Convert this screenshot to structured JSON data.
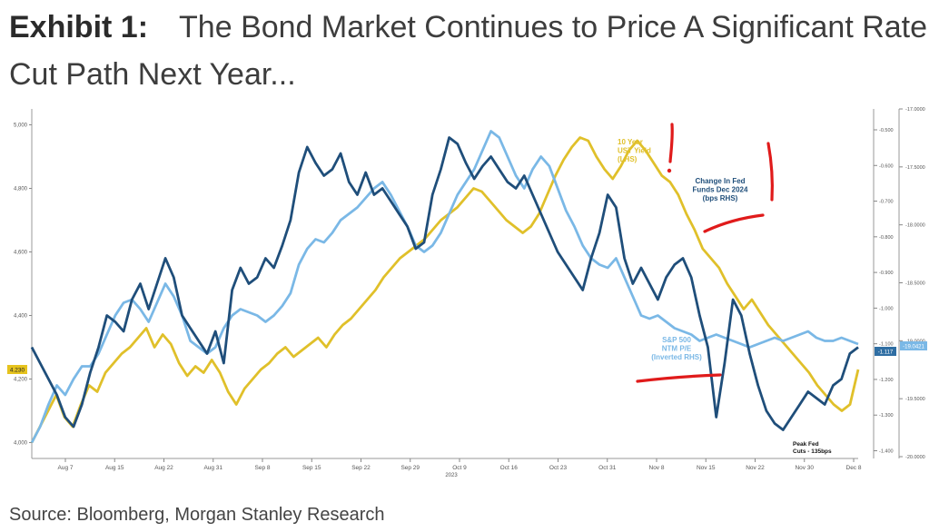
{
  "header": {
    "exhibit": "Exhibit 1:",
    "title": "The Bond Market Continues to Price A Significant Rate Cut Path Next Year..."
  },
  "source": "Source: Bloomberg, Morgan Stanley Research",
  "chart_data": {
    "type": "line",
    "x_ticks": [
      "Aug 7",
      "Aug 15",
      "Aug 22",
      "Aug 31",
      "Sep 8",
      "Sep 15",
      "Sep 22",
      "Sep 29",
      "Oct 9",
      "Oct 16",
      "Oct 23",
      "Oct 31",
      "Nov 8",
      "Nov 15",
      "Nov 22",
      "Nov 30",
      "Dec 8"
    ],
    "x_sub_label": "2023",
    "left_axis": {
      "ticks": [
        "4,000",
        "4,200",
        "4,400",
        "4,600",
        "4,800",
        "5,000"
      ],
      "range": [
        3.95,
        5.05
      ],
      "highlight_label": "4.230"
    },
    "right_axis_inner": {
      "ticks": [
        "-0.500",
        "-0.600",
        "-0.700",
        "-0.800",
        "-0.900",
        "-1.000",
        "-1.100",
        "-1.200",
        "-1.300",
        "-1.400"
      ],
      "highlight_label": "-1.117",
      "inverted": true
    },
    "right_axis_outer": {
      "ticks": [
        "-17.0000",
        "-17.5000",
        "-18.0000",
        "-18.5000",
        "-19.0000",
        "-19.5000",
        "-20.0000"
      ],
      "highlight_label": "-19.0421",
      "inverted": true
    },
    "grid": false,
    "series": [
      {
        "name": "10 Year UST Yield (LHS)",
        "color": "#e0c02a",
        "values": [
          4.0,
          4.05,
          4.1,
          4.15,
          4.08,
          4.05,
          4.12,
          4.18,
          4.16,
          4.22,
          4.25,
          4.28,
          4.3,
          4.33,
          4.36,
          4.3,
          4.34,
          4.31,
          4.25,
          4.21,
          4.24,
          4.22,
          4.26,
          4.22,
          4.16,
          4.12,
          4.17,
          4.2,
          4.23,
          4.25,
          4.28,
          4.3,
          4.27,
          4.29,
          4.31,
          4.33,
          4.3,
          4.34,
          4.37,
          4.39,
          4.42,
          4.45,
          4.48,
          4.52,
          4.55,
          4.58,
          4.6,
          4.62,
          4.64,
          4.67,
          4.7,
          4.72,
          4.74,
          4.77,
          4.8,
          4.79,
          4.76,
          4.73,
          4.7,
          4.68,
          4.66,
          4.68,
          4.72,
          4.78,
          4.84,
          4.89,
          4.93,
          4.96,
          4.95,
          4.9,
          4.86,
          4.83,
          4.87,
          4.92,
          4.95,
          4.92,
          4.88,
          4.84,
          4.82,
          4.78,
          4.72,
          4.67,
          4.61,
          4.58,
          4.55,
          4.5,
          4.46,
          4.42,
          4.45,
          4.41,
          4.37,
          4.34,
          4.31,
          4.28,
          4.25,
          4.22,
          4.18,
          4.15,
          4.12,
          4.1,
          4.12,
          4.23
        ]
      },
      {
        "name": "Change In Fed Funds Dec 2024 (bps RHS)",
        "color": "#1f4e7a",
        "values": [
          4.3,
          4.25,
          4.2,
          4.15,
          4.08,
          4.05,
          4.12,
          4.22,
          4.3,
          4.4,
          4.38,
          4.35,
          4.45,
          4.5,
          4.42,
          4.5,
          4.58,
          4.52,
          4.4,
          4.36,
          4.32,
          4.28,
          4.35,
          4.25,
          4.48,
          4.55,
          4.5,
          4.52,
          4.58,
          4.55,
          4.62,
          4.7,
          4.85,
          4.93,
          4.88,
          4.84,
          4.86,
          4.91,
          4.82,
          4.78,
          4.85,
          4.78,
          4.8,
          4.76,
          4.72,
          4.68,
          4.61,
          4.63,
          4.78,
          4.86,
          4.96,
          4.94,
          4.88,
          4.83,
          4.87,
          4.9,
          4.86,
          4.82,
          4.8,
          4.84,
          4.78,
          4.72,
          4.66,
          4.6,
          4.56,
          4.52,
          4.48,
          4.58,
          4.66,
          4.78,
          4.74,
          4.58,
          4.5,
          4.55,
          4.5,
          4.45,
          4.52,
          4.56,
          4.58,
          4.52,
          4.4,
          4.3,
          4.08,
          4.25,
          4.45,
          4.4,
          4.28,
          4.18,
          4.1,
          4.06,
          4.04,
          4.08,
          4.12,
          4.16,
          4.14,
          4.12,
          4.18,
          4.2,
          4.28,
          4.3
        ]
      },
      {
        "name": "S&P 500 NTM P/E (Inverted RHS)",
        "color": "#7ab8e6",
        "values": [
          4.0,
          4.05,
          4.12,
          4.18,
          4.15,
          4.2,
          4.24,
          4.24,
          4.28,
          4.34,
          4.4,
          4.44,
          4.45,
          4.42,
          4.38,
          4.44,
          4.5,
          4.46,
          4.4,
          4.32,
          4.3,
          4.28,
          4.3,
          4.36,
          4.4,
          4.42,
          4.41,
          4.4,
          4.38,
          4.4,
          4.43,
          4.47,
          4.56,
          4.61,
          4.64,
          4.63,
          4.66,
          4.7,
          4.72,
          4.74,
          4.77,
          4.8,
          4.82,
          4.78,
          4.73,
          4.68,
          4.62,
          4.6,
          4.62,
          4.66,
          4.72,
          4.78,
          4.82,
          4.86,
          4.92,
          4.98,
          4.96,
          4.9,
          4.84,
          4.8,
          4.86,
          4.9,
          4.87,
          4.8,
          4.73,
          4.68,
          4.62,
          4.58,
          4.56,
          4.55,
          4.58,
          4.52,
          4.46,
          4.4,
          4.39,
          4.4,
          4.38,
          4.36,
          4.35,
          4.34,
          4.32,
          4.33,
          4.34,
          4.33,
          4.32,
          4.31,
          4.3,
          4.31,
          4.32,
          4.33,
          4.32,
          4.33,
          4.34,
          4.35,
          4.33,
          4.32,
          4.32,
          4.33,
          4.32,
          4.31
        ]
      }
    ],
    "annotations": [
      {
        "text": "10 Year UST Yield (LHS)",
        "color": "#e0c02a"
      },
      {
        "text": "Change In Fed Funds Dec 2024 (bps RHS)",
        "color": "#1f4e7a"
      },
      {
        "text": "S&P 500 NTM P/E (Inverted RHS)",
        "color": "#7ab8e6"
      },
      {
        "text": "Peak Fed Cuts - 135bps",
        "color": "#111111"
      }
    ]
  }
}
